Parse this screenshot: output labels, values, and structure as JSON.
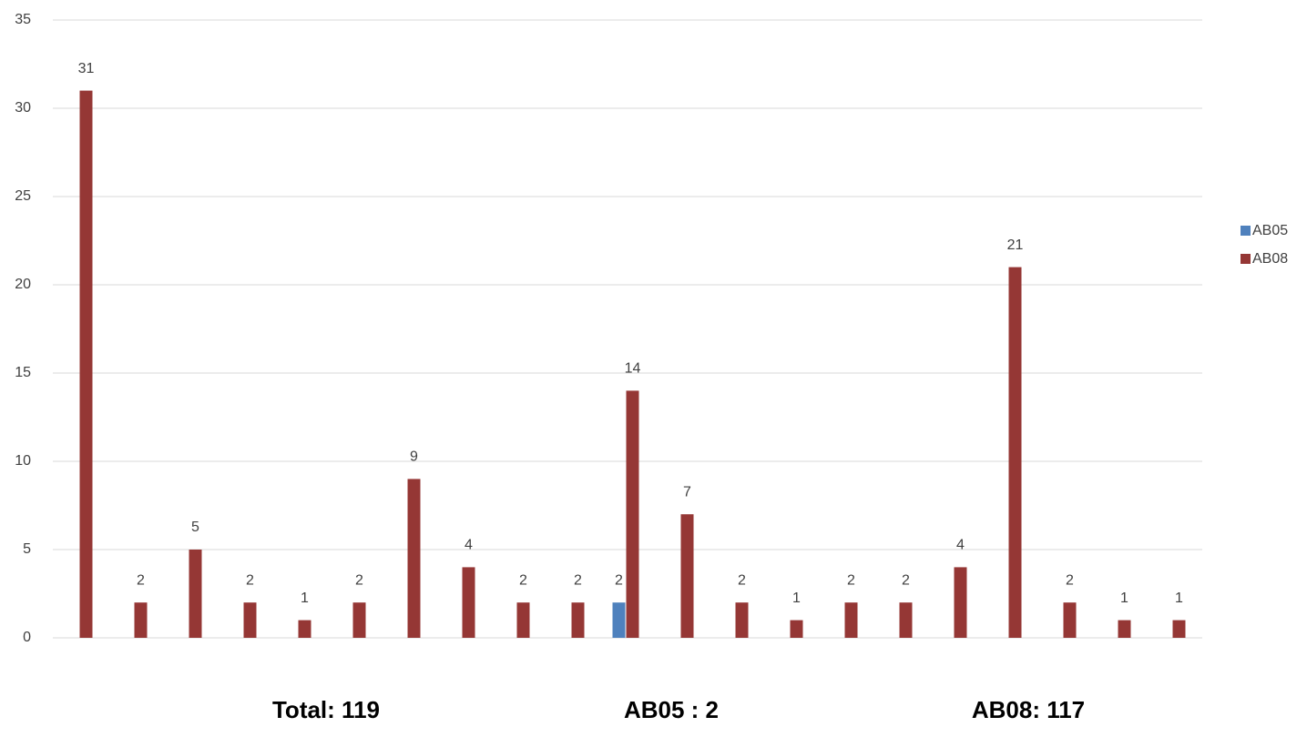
{
  "chart_data": {
    "type": "bar",
    "categories": [
      null,
      null,
      null,
      null,
      null,
      null,
      null,
      null,
      null,
      null,
      null,
      null,
      null,
      null,
      null,
      null,
      null,
      null,
      null,
      null,
      null
    ],
    "series": [
      {
        "name": "AB05",
        "color": "#4f81bd",
        "values": [
          null,
          null,
          null,
          null,
          null,
          null,
          null,
          null,
          null,
          null,
          2,
          null,
          null,
          null,
          null,
          null,
          null,
          null,
          null,
          null,
          null
        ]
      },
      {
        "name": "AB08",
        "color": "#953735",
        "values": [
          31,
          2,
          5,
          2,
          1,
          2,
          9,
          4,
          2,
          2,
          14,
          7,
          2,
          1,
          2,
          2,
          4,
          21,
          2,
          1,
          1
        ]
      }
    ],
    "ylim": [
      0,
      35
    ],
    "yticks": [
      0,
      5,
      10,
      15,
      20,
      25,
      30,
      35
    ],
    "grid": true,
    "legend": "right",
    "annotations": [
      "Total: 119",
      "AB05 : 2",
      "AB08: 117"
    ]
  }
}
